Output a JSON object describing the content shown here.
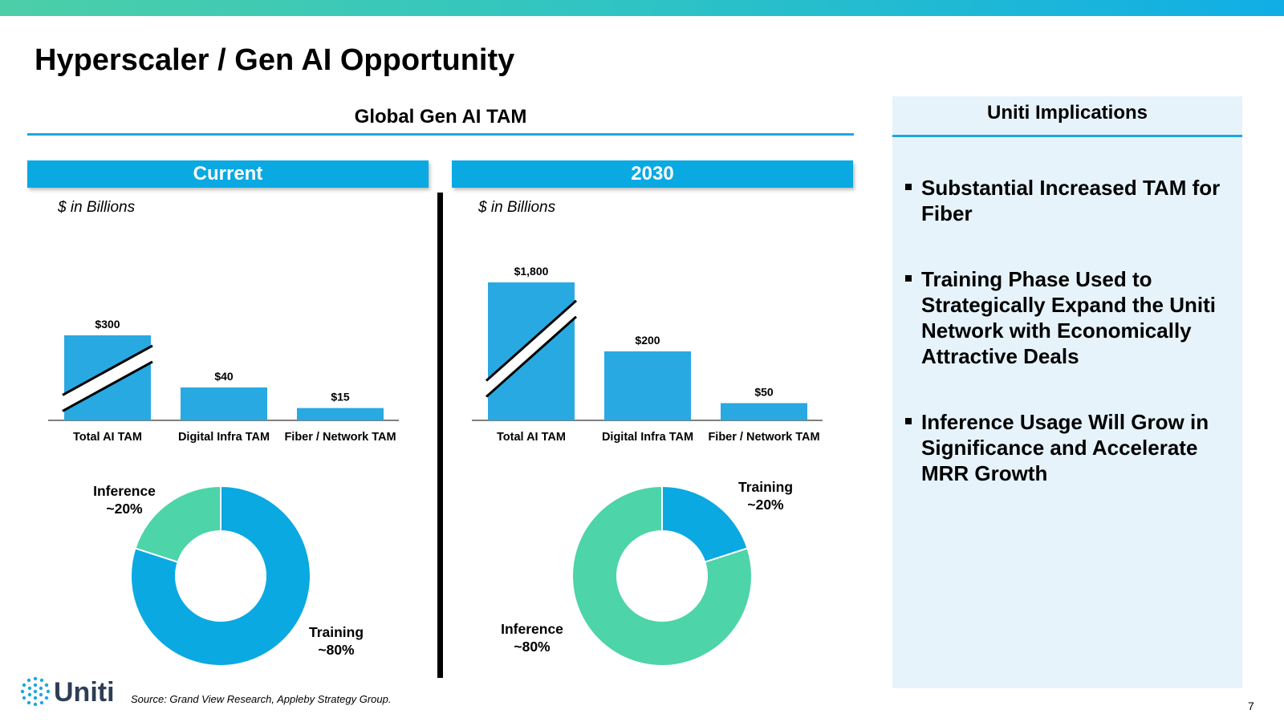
{
  "slide": {
    "title": "Hyperscaler / Gen AI Opportunity",
    "tam_header": "Global Gen AI TAM",
    "source": "Source: Grand View Research, Appleby Strategy Group.",
    "page_number": "7",
    "logo_text": "Uniti"
  },
  "panels": {
    "current": {
      "label": "Current",
      "units": "$ in Billions"
    },
    "future": {
      "label": "2030",
      "units": "$ in Billions"
    }
  },
  "colors": {
    "bar": "#29a9e1",
    "training": "#0aa9e2",
    "inference": "#4dd4a8",
    "accent": "#1fa6e0"
  },
  "chart_data": [
    {
      "type": "bar",
      "title": "Current",
      "categories": [
        "Total AI TAM",
        "Digital Infra TAM",
        "Fiber / Network TAM"
      ],
      "values": [
        300,
        40,
        15
      ],
      "value_labels": [
        "$300",
        "$40",
        "$15"
      ],
      "axis_break": "Total AI TAM",
      "ylabel": "$ in Billions"
    },
    {
      "type": "bar",
      "title": "2030",
      "categories": [
        "Total AI TAM",
        "Digital Infra TAM",
        "Fiber / Network TAM"
      ],
      "values": [
        1800,
        200,
        50
      ],
      "value_labels": [
        "$1,800",
        "$200",
        "$50"
      ],
      "axis_break": "Total AI TAM",
      "ylabel": "$ in Billions"
    },
    {
      "type": "pie",
      "donut": true,
      "title": "Current",
      "slices": [
        {
          "name": "Training",
          "value": 80,
          "label": "~80%",
          "color": "#0aa9e2"
        },
        {
          "name": "Inference",
          "value": 20,
          "label": "~20%",
          "color": "#4dd4a8"
        }
      ]
    },
    {
      "type": "pie",
      "donut": true,
      "title": "2030",
      "slices": [
        {
          "name": "Training",
          "value": 20,
          "label": "~20%",
          "color": "#0aa9e2"
        },
        {
          "name": "Inference",
          "value": 80,
          "label": "~80%",
          "color": "#4dd4a8"
        }
      ]
    }
  ],
  "implications": {
    "title": "Uniti Implications",
    "bullets": [
      "Substantial Increased TAM for Fiber",
      "Training Phase Used to Strategically Expand the Uniti Network with Economically Attractive Deals",
      "Inference Usage Will Grow in Significance and Accelerate MRR Growth"
    ]
  }
}
